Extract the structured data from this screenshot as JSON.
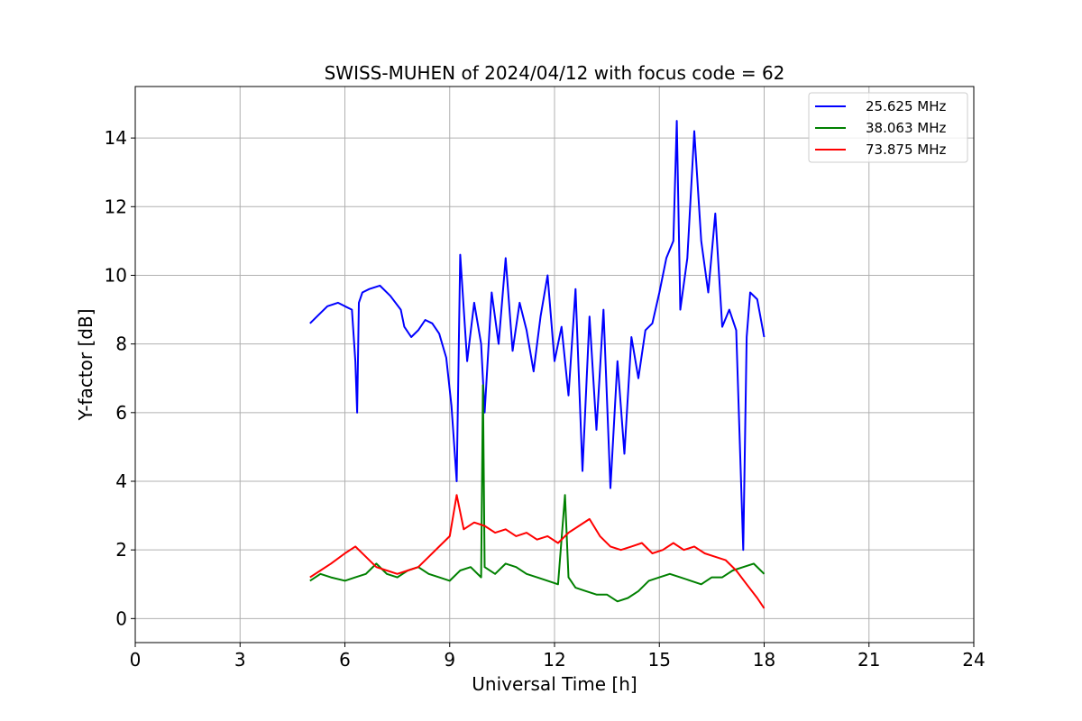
{
  "chart_data": {
    "type": "line",
    "title": "SWISS-MUHEN of 2024/04/12 with focus code = 62",
    "xlabel": "Universal Time [h]",
    "ylabel": "Y-factor [dB]",
    "xlim": [
      0,
      24
    ],
    "ylim": [
      -0.7,
      15.5
    ],
    "xticks": [
      0,
      3,
      6,
      9,
      12,
      15,
      18,
      21,
      24
    ],
    "yticks": [
      0,
      2,
      4,
      6,
      8,
      10,
      12,
      14
    ],
    "grid": true,
    "legend_position": "top-right",
    "series": [
      {
        "name": "25.625 MHz",
        "color": "#0000ff",
        "x": [
          5.0,
          5.2,
          5.5,
          5.8,
          6.0,
          6.2,
          6.3,
          6.35,
          6.4,
          6.5,
          6.7,
          7.0,
          7.3,
          7.6,
          7.7,
          7.9,
          8.1,
          8.3,
          8.5,
          8.7,
          8.9,
          9.05,
          9.2,
          9.3,
          9.5,
          9.7,
          9.9,
          10.0,
          10.2,
          10.4,
          10.6,
          10.8,
          11.0,
          11.2,
          11.4,
          11.6,
          11.8,
          12.0,
          12.2,
          12.4,
          12.6,
          12.8,
          13.0,
          13.2,
          13.4,
          13.6,
          13.8,
          14.0,
          14.2,
          14.4,
          14.6,
          14.8,
          15.0,
          15.2,
          15.4,
          15.5,
          15.6,
          15.8,
          16.0,
          16.2,
          16.4,
          16.6,
          16.8,
          17.0,
          17.2,
          17.4,
          17.5,
          17.6,
          17.8,
          18.0
        ],
        "y": [
          8.6,
          8.8,
          9.1,
          9.2,
          9.1,
          9.0,
          7.5,
          6.0,
          9.2,
          9.5,
          9.6,
          9.7,
          9.4,
          9.0,
          8.5,
          8.2,
          8.4,
          8.7,
          8.6,
          8.3,
          7.6,
          6.2,
          4.0,
          10.6,
          7.5,
          9.2,
          8.0,
          6.0,
          9.5,
          8.0,
          10.5,
          7.8,
          9.2,
          8.4,
          7.2,
          8.8,
          10.0,
          7.5,
          8.5,
          6.5,
          9.6,
          4.3,
          8.8,
          5.5,
          9.0,
          3.8,
          7.5,
          4.8,
          8.2,
          7.0,
          8.4,
          8.6,
          9.5,
          10.5,
          11.0,
          14.5,
          9.0,
          10.5,
          14.2,
          11.0,
          9.5,
          11.8,
          8.5,
          9.0,
          8.4,
          2.0,
          8.2,
          9.5,
          9.3,
          8.2
        ]
      },
      {
        "name": "38.063 MHz",
        "color": "#008000",
        "x": [
          5.0,
          5.3,
          5.6,
          6.0,
          6.3,
          6.6,
          6.9,
          7.2,
          7.5,
          7.8,
          8.1,
          8.4,
          8.7,
          9.0,
          9.3,
          9.6,
          9.9,
          9.95,
          10.0,
          10.3,
          10.6,
          10.9,
          11.2,
          11.5,
          11.8,
          12.1,
          12.3,
          12.4,
          12.6,
          12.9,
          13.2,
          13.5,
          13.8,
          14.1,
          14.4,
          14.7,
          15.0,
          15.3,
          15.6,
          15.9,
          16.2,
          16.5,
          16.8,
          17.1,
          17.4,
          17.7,
          18.0
        ],
        "y": [
          1.1,
          1.3,
          1.2,
          1.1,
          1.2,
          1.3,
          1.6,
          1.3,
          1.2,
          1.4,
          1.5,
          1.3,
          1.2,
          1.1,
          1.4,
          1.5,
          1.2,
          6.8,
          1.5,
          1.3,
          1.6,
          1.5,
          1.3,
          1.2,
          1.1,
          1.0,
          3.6,
          1.2,
          0.9,
          0.8,
          0.7,
          0.7,
          0.5,
          0.6,
          0.8,
          1.1,
          1.2,
          1.3,
          1.2,
          1.1,
          1.0,
          1.2,
          1.2,
          1.4,
          1.5,
          1.6,
          1.3
        ]
      },
      {
        "name": "73.875 MHz",
        "color": "#ff0000",
        "x": [
          5.0,
          5.3,
          5.6,
          6.0,
          6.3,
          6.6,
          6.9,
          7.2,
          7.5,
          7.8,
          8.1,
          8.4,
          8.7,
          9.0,
          9.2,
          9.4,
          9.7,
          10.0,
          10.3,
          10.6,
          10.9,
          11.2,
          11.5,
          11.8,
          12.1,
          12.4,
          12.7,
          13.0,
          13.3,
          13.6,
          13.9,
          14.2,
          14.5,
          14.8,
          15.1,
          15.4,
          15.7,
          16.0,
          16.3,
          16.6,
          16.9,
          17.2,
          17.5,
          17.8,
          18.0
        ],
        "y": [
          1.2,
          1.4,
          1.6,
          1.9,
          2.1,
          1.8,
          1.5,
          1.4,
          1.3,
          1.4,
          1.5,
          1.8,
          2.1,
          2.4,
          3.6,
          2.6,
          2.8,
          2.7,
          2.5,
          2.6,
          2.4,
          2.5,
          2.3,
          2.4,
          2.2,
          2.5,
          2.7,
          2.9,
          2.4,
          2.1,
          2.0,
          2.1,
          2.2,
          1.9,
          2.0,
          2.2,
          2.0,
          2.1,
          1.9,
          1.8,
          1.7,
          1.4,
          1.0,
          0.6,
          0.3
        ]
      }
    ]
  }
}
